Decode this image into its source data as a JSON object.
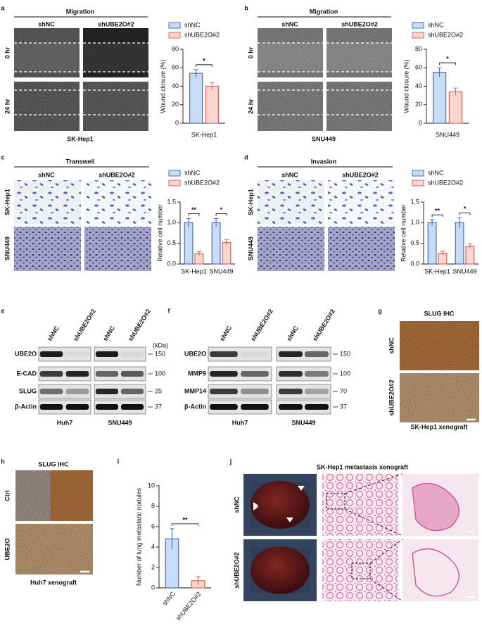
{
  "panels": {
    "a": {
      "letter": "a",
      "header": "Migration",
      "columns": [
        "shNC",
        "shUBE2O#2"
      ],
      "rows": [
        "0 hr",
        "24 hr"
      ],
      "caption": "SK-Hep1"
    },
    "b": {
      "letter": "b",
      "header": "Migration",
      "columns": [
        "shNC",
        "shUBE2O#2"
      ],
      "rows": [
        "0 hr",
        "24 hr"
      ],
      "caption": "SNU449"
    },
    "c": {
      "letter": "c",
      "header": "Transwell",
      "columns": [
        "shNC",
        "shUBE2O#2"
      ],
      "rows": [
        "SK-Hep1",
        "SNU449"
      ]
    },
    "d": {
      "letter": "d",
      "header": "Invasion",
      "columns": [
        "shNC",
        "shUBE2O#2"
      ],
      "rows": [
        "SK-Hep1",
        "SNU449"
      ]
    },
    "e": {
      "letter": "e",
      "columns": [
        "shNC",
        "shUBE2O#2",
        "shNC",
        "shUBE2O#2"
      ],
      "unit": "(kDa)",
      "rows": [
        "UBE2O",
        "E-CAD",
        "SLUG",
        "β-Actin"
      ],
      "markers": [
        "150",
        "100",
        "25",
        "37"
      ],
      "groups": [
        "Huh7",
        "SNU449"
      ]
    },
    "f": {
      "letter": "f",
      "columns": [
        "shNC",
        "shUBE2O#2",
        "shNC",
        "shUBE2O#2"
      ],
      "rows": [
        "UBE2O",
        "MMP9",
        "MMP14",
        "β-Actin"
      ],
      "markers": [
        "150",
        "100",
        "70",
        "37"
      ],
      "groups": [
        "Huh7",
        "SNU449"
      ]
    },
    "g": {
      "letter": "g",
      "header": "SLUG IHC",
      "rows": [
        "shNC",
        "shUBE2O#2"
      ],
      "caption": "SK-Hep1 xenograft"
    },
    "h": {
      "letter": "h",
      "header": "SLUG IHC",
      "rows": [
        "Ctrl",
        "UBE2O"
      ],
      "caption": "Huh7 xenograft"
    },
    "i": {
      "letter": "i"
    },
    "j": {
      "letter": "j",
      "header": "SK-Hep1 metastasis xenograft",
      "rows": [
        "shNC",
        "shUBE2O#2"
      ]
    }
  },
  "chart_data": [
    {
      "type": "bar",
      "ylabel": "Wound closure (%)",
      "categories": [
        "SK-Hep1"
      ],
      "series": [
        {
          "name": "shNC",
          "color": "#c9dcf5",
          "edgecolor": "#3f6fc6",
          "values": [
            54
          ],
          "errors": [
            4
          ]
        },
        {
          "name": "shUBE2O#2",
          "color": "#fcd6d1",
          "edgecolor": "#e0645a",
          "values": [
            40
          ],
          "errors": [
            4
          ]
        }
      ],
      "ylim": [
        0,
        80
      ],
      "yticks": [
        0,
        20,
        40,
        60,
        80
      ],
      "significance": [
        "*"
      ]
    },
    {
      "type": "bar",
      "ylabel": "Wound closure (%)",
      "categories": [
        "SNU449"
      ],
      "series": [
        {
          "name": "shNC",
          "color": "#c9dcf5",
          "edgecolor": "#3f6fc6",
          "values": [
            55
          ],
          "errors": [
            5
          ]
        },
        {
          "name": "shUBE2O#2",
          "color": "#fcd6d1",
          "edgecolor": "#e0645a",
          "values": [
            34
          ],
          "errors": [
            4
          ]
        }
      ],
      "ylim": [
        0,
        80
      ],
      "yticks": [
        0,
        20,
        40,
        60,
        80
      ],
      "significance": [
        "*"
      ]
    },
    {
      "type": "bar",
      "ylabel": "Relative cell number",
      "categories": [
        "SK-Hep1",
        "SNU449"
      ],
      "series": [
        {
          "name": "shNC",
          "color": "#c9dcf5",
          "edgecolor": "#3f6fc6",
          "values": [
            1.0,
            1.0
          ],
          "errors": [
            0.1,
            0.1
          ]
        },
        {
          "name": "shUBE2O#2",
          "color": "#fcd6d1",
          "edgecolor": "#e0645a",
          "values": [
            0.25,
            0.52
          ],
          "errors": [
            0.05,
            0.07
          ]
        }
      ],
      "ylim": [
        0,
        1.5
      ],
      "yticks": [
        {
          "value": 0,
          "label": "0.0"
        },
        {
          "value": 0.5,
          "label": "0.5"
        },
        {
          "value": 1,
          "label": "1.0"
        },
        {
          "value": 1.5,
          "label": "1.5"
        }
      ],
      "significance": [
        "**",
        "*"
      ]
    },
    {
      "type": "bar",
      "ylabel": "Relative cell number",
      "categories": [
        "SK-Hep1",
        "SNU449"
      ],
      "series": [
        {
          "name": "shNC",
          "color": "#c9dcf5",
          "edgecolor": "#3f6fc6",
          "values": [
            1.0,
            1.0
          ],
          "errors": [
            0.07,
            0.12
          ]
        },
        {
          "name": "shUBE2O#2",
          "color": "#fcd6d1",
          "edgecolor": "#e0645a",
          "values": [
            0.26,
            0.43
          ],
          "errors": [
            0.05,
            0.06
          ]
        }
      ],
      "ylim": [
        0,
        1.5
      ],
      "yticks": [
        {
          "value": 0,
          "label": "0.0"
        },
        {
          "value": 0.5,
          "label": "0.5"
        },
        {
          "value": 1,
          "label": "1.0"
        },
        {
          "value": 1.5,
          "label": "1.5"
        }
      ],
      "significance": [
        "**",
        "*"
      ]
    },
    {
      "type": "bar",
      "ylabel": "Number of lung metastatic nodules",
      "categories": [
        "shNC",
        "shUBE2O#2"
      ],
      "values": [
        4.8,
        0.7
      ],
      "errors": [
        1.0,
        0.4
      ],
      "colors": [
        "#c9dcf5",
        "#fcd6d1"
      ],
      "edgecolors": [
        "#3f6fc6",
        "#e0645a"
      ],
      "ylim": [
        0,
        10
      ],
      "yticks": [
        0,
        2,
        4,
        6,
        8,
        10
      ],
      "significance": [
        "**"
      ]
    }
  ]
}
